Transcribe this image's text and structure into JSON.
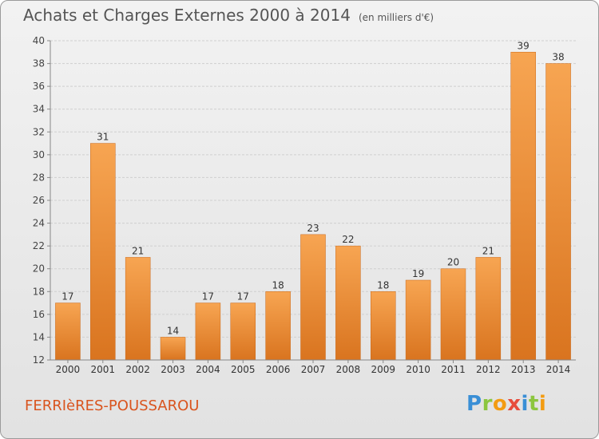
{
  "chart_data": {
    "type": "bar",
    "title": "Achats et Charges Externes 2000 à 2014",
    "subtitle": "(en milliers d'€)",
    "categories": [
      "2000",
      "2001",
      "2002",
      "2003",
      "2004",
      "2005",
      "2006",
      "2007",
      "2008",
      "2009",
      "2010",
      "2011",
      "2012",
      "2013",
      "2014"
    ],
    "values": [
      17,
      31,
      21,
      14,
      17,
      17,
      18,
      23,
      22,
      18,
      19,
      20,
      21,
      39,
      38
    ],
    "ylim": [
      12,
      40
    ],
    "yticks": [
      12,
      14,
      16,
      18,
      20,
      22,
      24,
      26,
      28,
      30,
      32,
      34,
      36,
      38,
      40
    ],
    "grid": "horizontal",
    "data_labels": true,
    "bar_color_light": "#f7a552",
    "bar_color_dark": "#d9741f"
  },
  "footer": {
    "city": "FERRIèRES-POUSSAROU",
    "city_color": "#d9541e"
  },
  "logo": {
    "text": "Proxiti",
    "letters": [
      {
        "ch": "P",
        "color": "#3a8fd6"
      },
      {
        "ch": "r",
        "color": "#8cc63f"
      },
      {
        "ch": "o",
        "color": "#f39c12"
      },
      {
        "ch": "x",
        "color": "#e74c3c"
      },
      {
        "ch": "i",
        "color": "#3a8fd6"
      },
      {
        "ch": "t",
        "color": "#8cc63f"
      },
      {
        "ch": "i",
        "color": "#f39c12"
      }
    ]
  }
}
